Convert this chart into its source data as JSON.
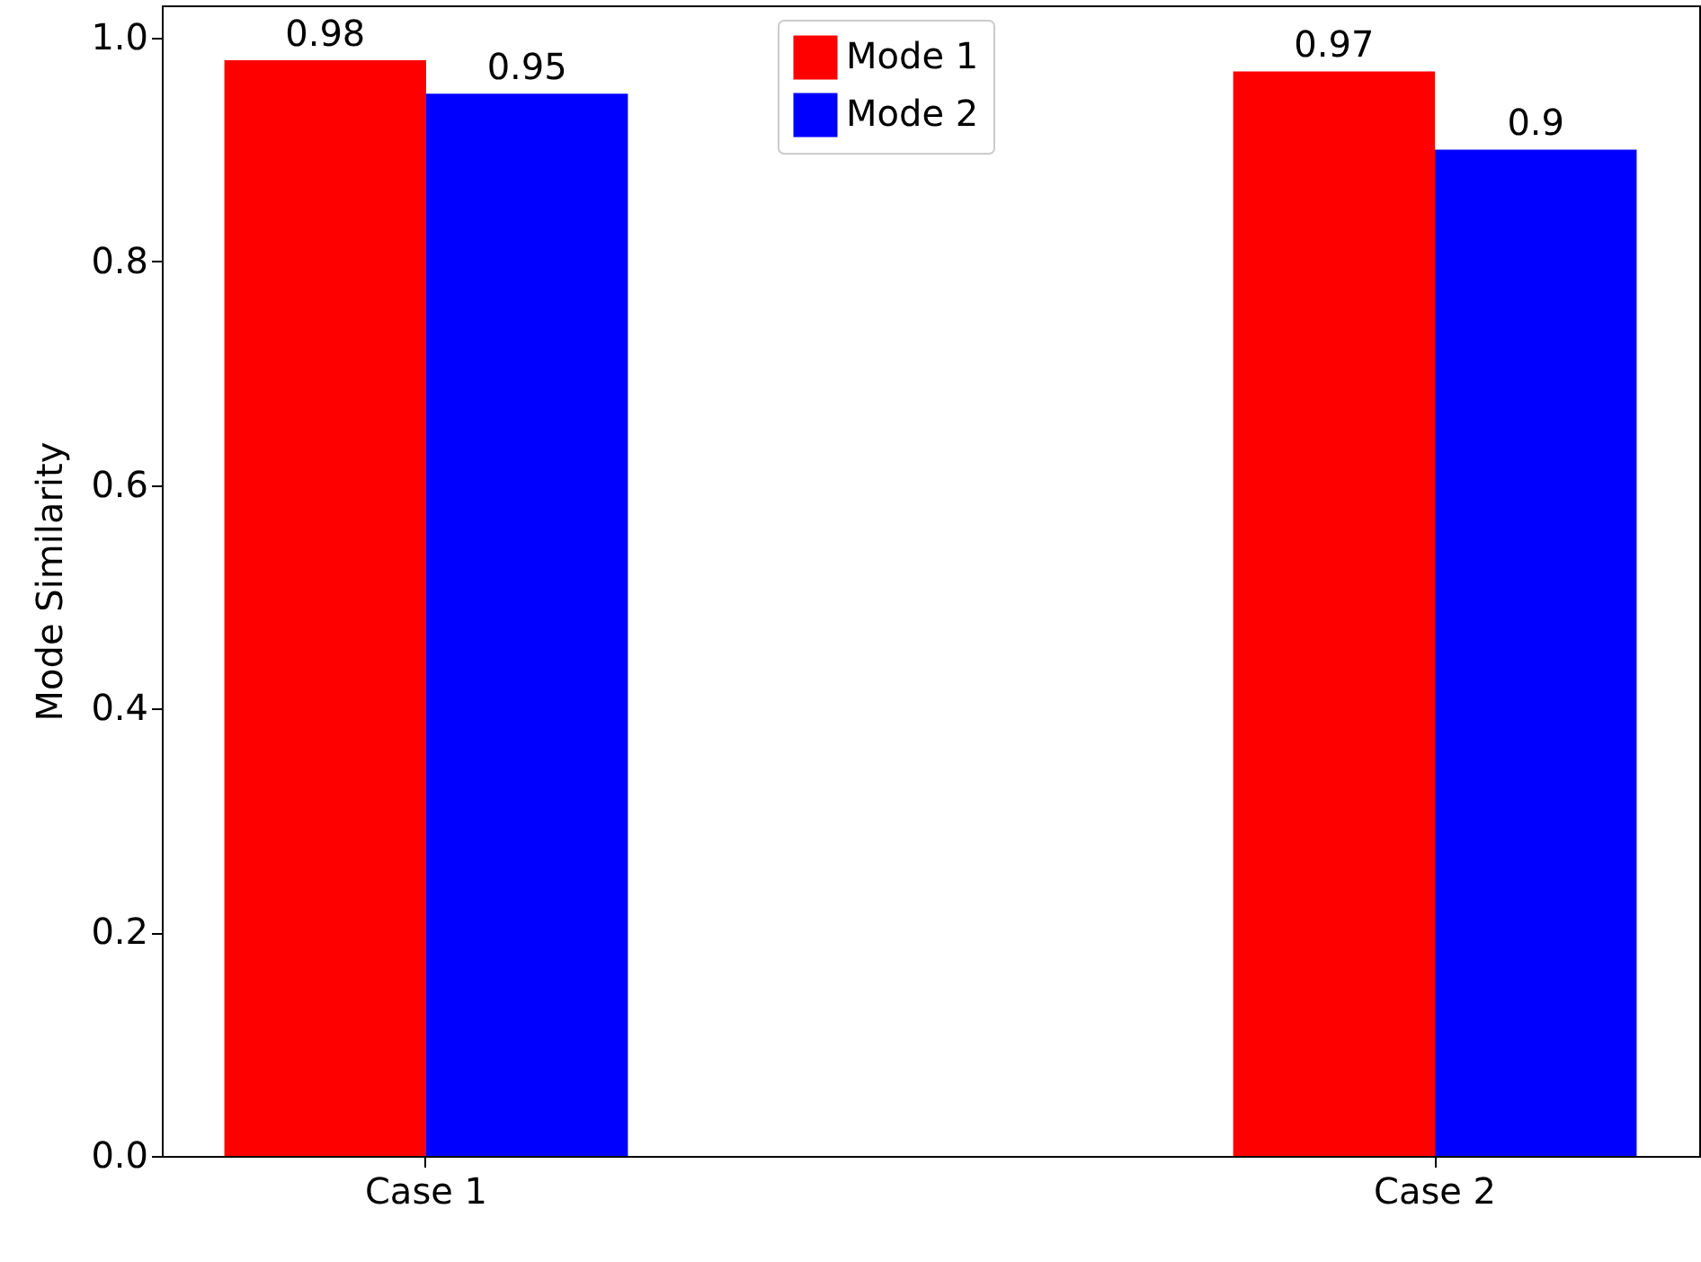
{
  "chart_data": {
    "type": "bar",
    "ylabel": "Mode Similarity",
    "categories": [
      "Case 1",
      "Case 2"
    ],
    "series": [
      {
        "name": "Mode 1",
        "color": "#ff0000",
        "values": [
          0.98,
          0.97
        ]
      },
      {
        "name": "Mode 2",
        "color": "#0000ff",
        "values": [
          0.95,
          0.9
        ]
      }
    ],
    "ylim": [
      0,
      1.029
    ],
    "yticks": [
      {
        "value": 0,
        "label": "0.0"
      },
      0.2,
      0.4,
      0.6,
      0.8,
      {
        "value": 1,
        "label": "1.0"
      }
    ],
    "data_labels": true,
    "legend": "top",
    "grid": false
  }
}
